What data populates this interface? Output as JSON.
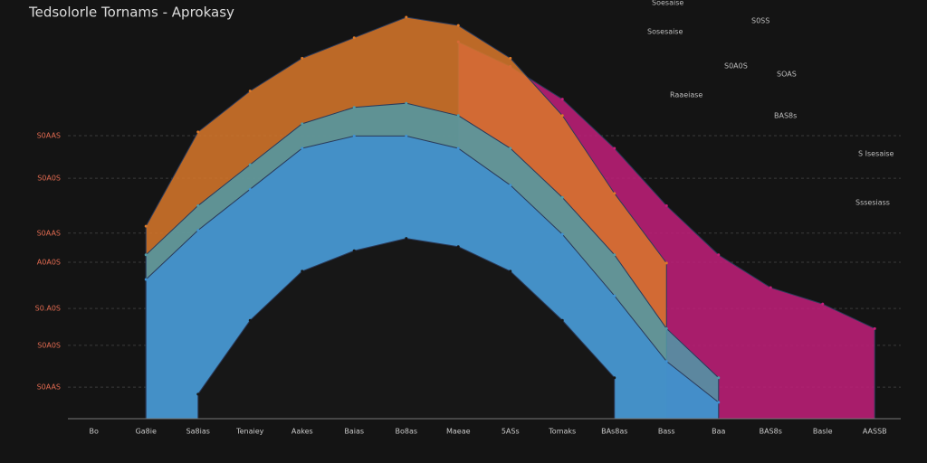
{
  "chart_data": {
    "type": "area",
    "title": "Tedsolorle Tornams - Aprokasy",
    "categories": [
      "Bo",
      "Ga8ie",
      "Sa8ias",
      "Tenaiey",
      "Aakes",
      "Baias",
      "Bo8as",
      "Maeae",
      "5ASs",
      "Tomaks",
      "BAs8as",
      "Bass",
      "Baa",
      "BAS8s",
      "Basle",
      "AASSB"
    ],
    "series": [
      {
        "name": "Magenta",
        "color": "#c21f7a",
        "values": [
          null,
          null,
          null,
          null,
          null,
          null,
          null,
          92,
          86,
          78,
          66,
          52,
          40,
          32,
          28,
          22
        ]
      },
      {
        "name": "Orange",
        "color": "#d9782a",
        "values": [
          null,
          47,
          70,
          80,
          88,
          93,
          98,
          96,
          88,
          74,
          55,
          38,
          null,
          null,
          null,
          null
        ]
      },
      {
        "name": "Teal",
        "color": "#4f9aa8",
        "values": [
          null,
          40,
          52,
          62,
          72,
          76,
          77,
          74,
          66,
          54,
          40,
          22,
          10,
          null,
          null,
          null
        ]
      },
      {
        "name": "Blue",
        "color": "#3f8fd0",
        "values": [
          null,
          34,
          46,
          56,
          66,
          69,
          69,
          66,
          57,
          45,
          30,
          14,
          4,
          null,
          null,
          null
        ]
      },
      {
        "name": "Inner",
        "color": "#171717",
        "values": [
          null,
          null,
          6,
          24,
          36,
          41,
          44,
          42,
          36,
          24,
          10,
          null,
          null,
          null,
          null,
          null
        ]
      }
    ],
    "ylim": [
      0,
      100
    ],
    "yticks": [
      {
        "value": 7.7,
        "label": "S0AAS"
      },
      {
        "value": 17.9,
        "label": "S0A0S"
      },
      {
        "value": 26.9,
        "label": "S0.A0S"
      },
      {
        "value": 38.2,
        "label": "A0A0S"
      },
      {
        "value": 45.3,
        "label": "S0AAS"
      },
      {
        "value": 58.7,
        "label": "S0A0S"
      },
      {
        "value": 69.1,
        "label": "S0AAS"
      }
    ],
    "grid": true,
    "annotations": [
      "Soesaise",
      "Sosesaise",
      "S0SS",
      "S0A0S",
      "Raaeiase",
      "SOAS",
      "S Isesaise",
      "BAS8s",
      "Sssesiass"
    ]
  }
}
